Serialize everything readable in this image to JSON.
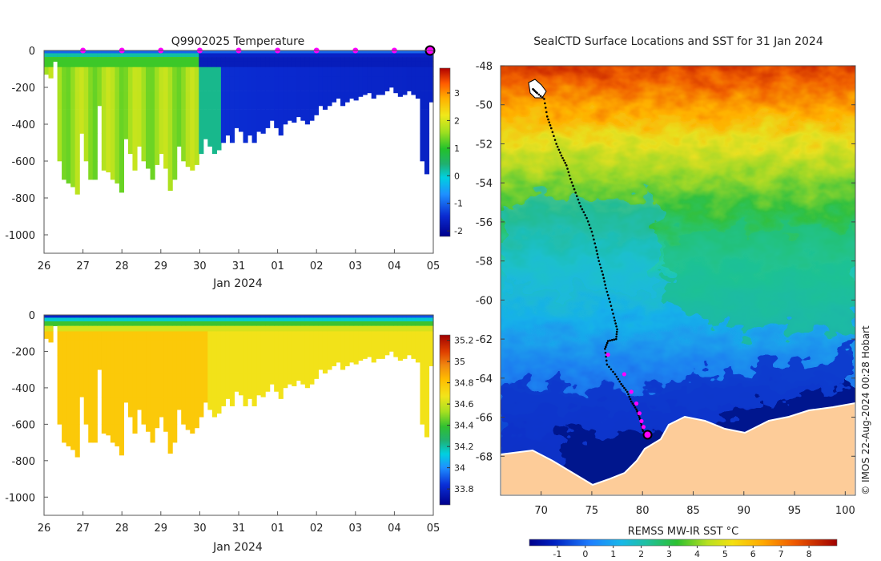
{
  "chart_data": [
    {
      "type": "heatmap",
      "title": "Q9902025  Temperature",
      "xlabel": "Jan 2024",
      "x_ticks": [
        "26",
        "27",
        "28",
        "29",
        "30",
        "31",
        "01",
        "02",
        "03",
        "04",
        "05"
      ],
      "x_range_days": [
        0,
        10
      ],
      "y_ticks": [
        "0",
        "-200",
        "-400",
        "-600",
        "-800",
        "-1000"
      ],
      "ylim": [
        -1100,
        0
      ],
      "colorbar_ticks": [
        "3",
        "2",
        "1",
        "0",
        "-1",
        "-2"
      ],
      "colorbar_range": [
        -2.2,
        3.9
      ],
      "marker_days": [
        1,
        2,
        3,
        4,
        5,
        6,
        7,
        8,
        9
      ],
      "marker_color": "#ff00ff",
      "last_profile_day": 10,
      "profile_max_depths": [
        130,
        150,
        60,
        600,
        700,
        720,
        740,
        780,
        450,
        600,
        700,
        700,
        300,
        650,
        660,
        700,
        720,
        770,
        480,
        560,
        650,
        520,
        600,
        640,
        700,
        620,
        560,
        640,
        760,
        700,
        520,
        600,
        630,
        650,
        620,
        560,
        480,
        520,
        560,
        540,
        500,
        460,
        500,
        420,
        440,
        500,
        460,
        500,
        440,
        450,
        420,
        380,
        420,
        460,
        400,
        380,
        390,
        360,
        380,
        400,
        380,
        350,
        300,
        320,
        300,
        280,
        260,
        300,
        280,
        260,
        270,
        250,
        240,
        230,
        260,
        240,
        240,
        220,
        200,
        230,
        250,
        240,
        220,
        240,
        260,
        600,
        670,
        280
      ]
    },
    {
      "type": "heatmap",
      "title": "",
      "xlabel": "Jan 2024",
      "x_ticks": [
        "26",
        "27",
        "28",
        "29",
        "30",
        "31",
        "01",
        "02",
        "03",
        "04",
        "05"
      ],
      "x_range_days": [
        0,
        10
      ],
      "y_ticks": [
        "0",
        "-200",
        "-400",
        "-600",
        "-800",
        "-1000"
      ],
      "ylim": [
        -1100,
        0
      ],
      "colorbar_ticks": [
        "35.2",
        "35",
        "34.8",
        "34.6",
        "34.4",
        "34.2",
        "34",
        "33.8"
      ],
      "colorbar_range": [
        33.65,
        35.25
      ]
    },
    {
      "type": "heatmap",
      "title": "SealCTD Surface Locations and SST for 31 Jan 2024",
      "x_ticks": [
        "70",
        "75",
        "80",
        "85",
        "90",
        "95",
        "100"
      ],
      "xlim": [
        66,
        101
      ],
      "y_ticks": [
        "-48",
        "-50",
        "-52",
        "-54",
        "-56",
        "-58",
        "-60",
        "-62",
        "-64",
        "-66",
        "-68"
      ],
      "ylim": [
        -70,
        -48
      ],
      "colorbar_label": "REMSS MW-IR SST °C",
      "colorbar_ticks": [
        "-1",
        "0",
        "1",
        "2",
        "3",
        "4",
        "5",
        "6",
        "7",
        "8"
      ],
      "colorbar_range": [
        -2,
        9
      ],
      "land_color": "#fdcc99",
      "track": [
        [
          69.2,
          -49.2
        ],
        [
          69.6,
          -49.4
        ],
        [
          70.3,
          -49.7
        ],
        [
          70.6,
          -50.6
        ],
        [
          71.0,
          -51.2
        ],
        [
          71.5,
          -52.0
        ],
        [
          72.0,
          -52.6
        ],
        [
          72.5,
          -53.1
        ],
        [
          72.9,
          -53.8
        ],
        [
          73.4,
          -54.5
        ],
        [
          73.9,
          -55.2
        ],
        [
          74.5,
          -55.8
        ],
        [
          75.0,
          -56.5
        ],
        [
          75.4,
          -57.3
        ],
        [
          75.7,
          -58.0
        ],
        [
          76.1,
          -58.7
        ],
        [
          76.4,
          -59.4
        ],
        [
          76.8,
          -60.1
        ],
        [
          77.2,
          -60.9
        ],
        [
          77.5,
          -61.5
        ],
        [
          77.4,
          -62.0
        ],
        [
          76.6,
          -62.1
        ],
        [
          76.3,
          -62.5
        ],
        [
          76.5,
          -63.3
        ],
        [
          77.3,
          -63.8
        ],
        [
          77.9,
          -64.3
        ],
        [
          78.5,
          -64.7
        ],
        [
          78.9,
          -65.2
        ],
        [
          79.4,
          -65.6
        ],
        [
          79.7,
          -66.0
        ],
        [
          79.9,
          -66.4
        ],
        [
          80.1,
          -66.8
        ]
      ],
      "track_color": "#000000",
      "magenta_points": [
        [
          76.6,
          -62.8
        ],
        [
          78.2,
          -63.8
        ],
        [
          78.9,
          -64.7
        ],
        [
          79.4,
          -65.3
        ],
        [
          79.7,
          -65.8
        ],
        [
          79.9,
          -66.2
        ],
        [
          80.1,
          -66.5
        ]
      ],
      "current_position": [
        80.5,
        -66.9
      ]
    }
  ],
  "watermark": "© IMOS 22-Aug-2024 00:28 Hobart"
}
